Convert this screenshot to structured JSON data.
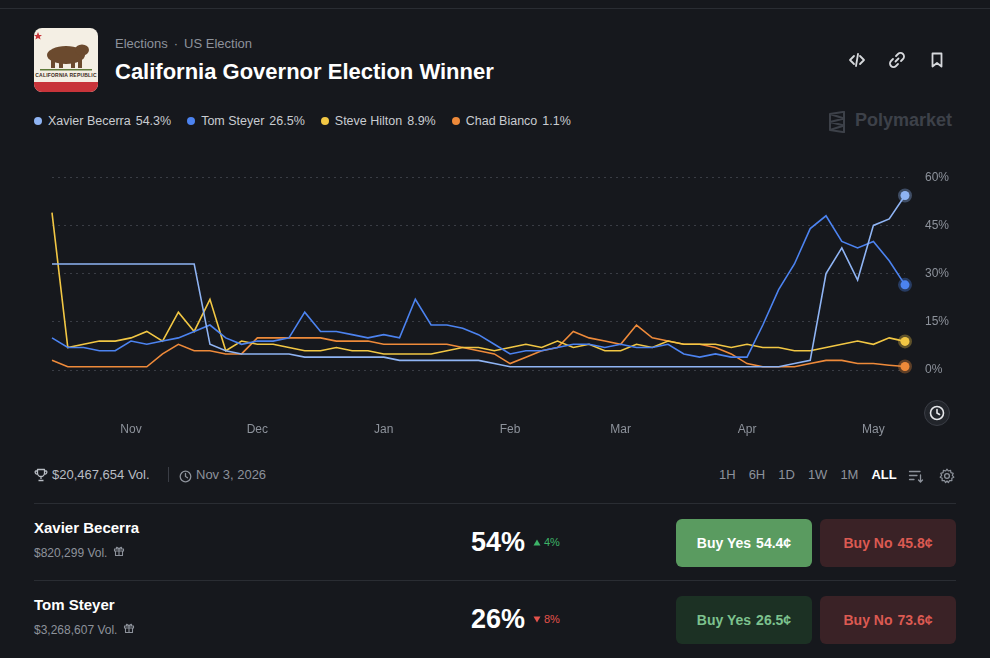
{
  "header": {
    "breadcrumb": [
      "Elections",
      "US Election"
    ],
    "separator": "·",
    "title": "California Governor Election Winner",
    "flag_text": "CALIFORNIA REPUBLIC",
    "watermark": "Polymarket"
  },
  "chart_data": {
    "type": "line",
    "categories": [
      null,
      null,
      null,
      null,
      null,
      "Nov",
      null,
      null,
      null,
      null,
      null,
      null,
      null,
      "Dec",
      null,
      null,
      null,
      null,
      null,
      null,
      null,
      "Jan",
      null,
      null,
      null,
      null,
      null,
      null,
      null,
      "Feb",
      null,
      null,
      null,
      null,
      null,
      null,
      "Mar",
      null,
      null,
      null,
      null,
      null,
      null,
      null,
      "Apr",
      null,
      null,
      null,
      null,
      null,
      null,
      null,
      "May",
      null,
      null
    ],
    "series": [
      {
        "name": "Xavier Becerra",
        "color": "#8fb4f4",
        "current_label": "54.3%",
        "values": [
          33,
          33,
          33,
          33,
          33,
          33,
          33,
          33,
          33,
          33,
          8,
          6,
          5,
          5,
          5,
          5,
          4,
          4,
          4,
          4,
          4,
          4,
          3,
          3,
          3,
          3,
          3,
          3,
          2,
          1,
          1,
          1,
          1,
          1,
          1,
          1,
          1,
          1,
          1,
          1,
          1,
          1,
          1,
          1,
          1,
          1,
          1,
          2,
          3,
          30,
          38,
          28,
          45,
          47,
          54.3
        ]
      },
      {
        "name": "Tom Steyer",
        "color": "#4c83f0",
        "current_label": "26.5%",
        "values": [
          10,
          7,
          7,
          6,
          6,
          9,
          8,
          9,
          10,
          12,
          14,
          10,
          8,
          9,
          9,
          10,
          18,
          12,
          12,
          11,
          10,
          11,
          10,
          22,
          14,
          14,
          13,
          11,
          8,
          5,
          6,
          6,
          7,
          8,
          8,
          7,
          8,
          7,
          7,
          8,
          5,
          4,
          5,
          4,
          4,
          14,
          25,
          33,
          44,
          48,
          40,
          38,
          40,
          34,
          26.5
        ]
      },
      {
        "name": "Steve Hilton",
        "color": "#f2c744",
        "current_label": "8.9%",
        "values": [
          49,
          7,
          8,
          9,
          9,
          10,
          12,
          9,
          18,
          12,
          22,
          6,
          9,
          8,
          8,
          7,
          6,
          6,
          7,
          6,
          6,
          5,
          5,
          5,
          5,
          6,
          7,
          7,
          6,
          7,
          8,
          7,
          9,
          7,
          8,
          6,
          6,
          8,
          7,
          9,
          8,
          8,
          8,
          7,
          8,
          7,
          7,
          6,
          6,
          7,
          8,
          9,
          8,
          10,
          8.9
        ]
      },
      {
        "name": "Chad Bianco",
        "color": "#ee8a3a",
        "current_label": "1.1%",
        "values": [
          3,
          1,
          1,
          1,
          1,
          1,
          1,
          5,
          8,
          6,
          6,
          5,
          5,
          10,
          10,
          10,
          10,
          10,
          9,
          9,
          9,
          8,
          8,
          8,
          8,
          8,
          7,
          6,
          5,
          2,
          4,
          6,
          7,
          12,
          10,
          9,
          8,
          14,
          10,
          9,
          8,
          8,
          7,
          5,
          2,
          1,
          1,
          1,
          2,
          3,
          3,
          2,
          2,
          1.5,
          1.1
        ]
      }
    ],
    "ylim": [
      0,
      60
    ],
    "yticks": [
      {
        "value": 0,
        "label": "0%"
      },
      {
        "value": 15,
        "label": "15%"
      },
      {
        "value": 30,
        "label": "30%"
      },
      {
        "value": 45,
        "label": "45%"
      },
      {
        "value": 60,
        "label": "60%"
      }
    ],
    "grid": true,
    "legend": "top-left"
  },
  "footer": {
    "volume": "$20,467,654 Vol.",
    "end_date": "Nov 3, 2026",
    "ranges": [
      "1H",
      "6H",
      "1D",
      "1W",
      "1M",
      "ALL"
    ],
    "active_range": "ALL"
  },
  "outcomes": [
    {
      "name": "Xavier Becerra",
      "volume": "$820,299 Vol.",
      "chance": "54%",
      "change": "4%",
      "direction": "up",
      "buy_yes": "Buy Yes",
      "yes_price": "54.4¢",
      "buy_no": "Buy No",
      "no_price": "45.8¢"
    },
    {
      "name": "Tom Steyer",
      "volume": "$3,268,607 Vol.",
      "chance": "26%",
      "change": "8%",
      "direction": "down",
      "buy_yes": "Buy Yes",
      "yes_price": "26.5¢",
      "buy_no": "Buy No",
      "no_price": "73.6¢"
    }
  ]
}
